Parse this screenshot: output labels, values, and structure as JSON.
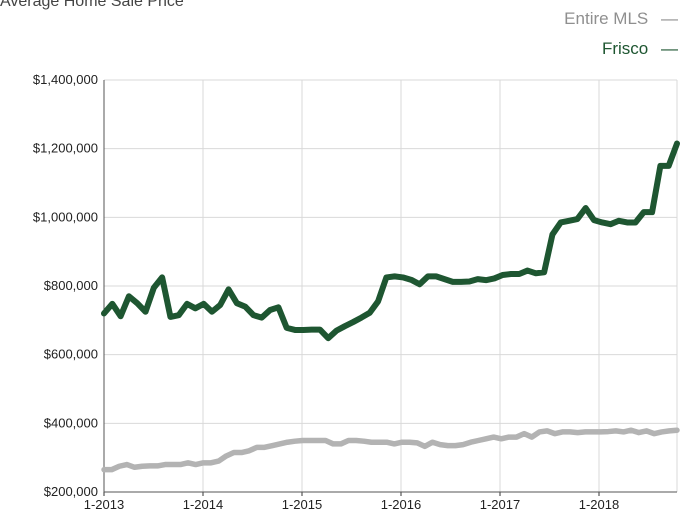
{
  "chart_data": {
    "type": "line",
    "title": "",
    "subtitle": "Average Home Sale Price",
    "xlabel": "",
    "ylabel": "",
    "ylim": [
      200000,
      1400000
    ],
    "y_ticks": [
      200000,
      400000,
      600000,
      800000,
      1000000,
      1200000,
      1400000
    ],
    "y_tick_labels": [
      "$200,000",
      "$400,000",
      "$600,000",
      "$800,000",
      "$1,000,000",
      "$1,200,000",
      "$1,400,000"
    ],
    "x_ticks": [
      "1-2013",
      "1-2014",
      "1-2015",
      "1-2016",
      "1-2017",
      "1-2018"
    ],
    "x_start": "1-2013",
    "x_end": "10-2018",
    "grid": true,
    "legend_position": "top-right",
    "series": [
      {
        "name": "Entire MLS",
        "color": "#b3b3b3",
        "values": [
          265000,
          265000,
          275000,
          280000,
          272000,
          275000,
          276000,
          276000,
          280000,
          280000,
          280000,
          285000,
          280000,
          285000,
          285000,
          290000,
          305000,
          315000,
          315000,
          320000,
          330000,
          330000,
          335000,
          340000,
          345000,
          348000,
          350000,
          350000,
          350000,
          350000,
          340000,
          340000,
          350000,
          350000,
          348000,
          345000,
          345000,
          345000,
          340000,
          345000,
          345000,
          343000,
          333000,
          345000,
          338000,
          335000,
          335000,
          338000,
          345000,
          350000,
          355000,
          360000,
          355000,
          360000,
          360000,
          370000,
          360000,
          375000,
          378000,
          370000,
          375000,
          375000,
          373000,
          375000,
          375000,
          375000,
          376000,
          378000,
          375000,
          380000,
          373000,
          378000,
          370000,
          375000,
          378000,
          380000
        ]
      },
      {
        "name": "Frisco",
        "color": "#1e5631",
        "values": [
          720000,
          748000,
          712000,
          770000,
          750000,
          725000,
          795000,
          825000,
          710000,
          715000,
          748000,
          735000,
          748000,
          725000,
          745000,
          790000,
          750000,
          740000,
          715000,
          708000,
          730000,
          738000,
          678000,
          672000,
          672000,
          673000,
          673000,
          648000,
          670000,
          683000,
          695000,
          708000,
          722000,
          755000,
          825000,
          828000,
          825000,
          818000,
          805000,
          828000,
          828000,
          820000,
          812000,
          812000,
          813000,
          820000,
          817000,
          822000,
          832000,
          835000,
          835000,
          845000,
          837000,
          840000,
          950000,
          985000,
          990000,
          995000,
          1027000,
          992000,
          985000,
          980000,
          990000,
          985000,
          985000,
          1015000,
          1015000,
          1150000,
          1150000,
          1215000
        ]
      }
    ]
  },
  "legend": {
    "items": [
      {
        "label": "Entire MLS",
        "symbol": "—",
        "color": "#8f8f8f"
      },
      {
        "label": "Frisco",
        "symbol": "—",
        "color": "#1e5631"
      }
    ]
  }
}
